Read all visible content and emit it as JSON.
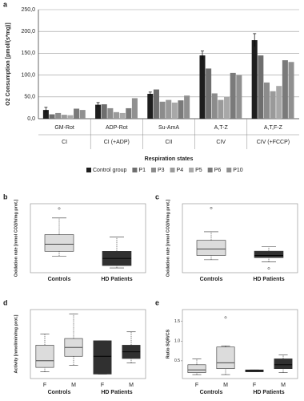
{
  "chart_data": [
    {
      "type": "bar",
      "panel_label": "a",
      "ylabel": "O2 Consumption [pmol/(s*mg)]",
      "xlabel": "Respiration states",
      "categories": [
        "GM-Rot",
        "ADP-Rot",
        "Su-AmA",
        "A,T-Z",
        "A,T,F-Z"
      ],
      "sub_categories": [
        "CI",
        "CI (+ADP)",
        "CII",
        "CIV",
        "CIV (+FCCP)"
      ],
      "ylim": [
        0,
        250
      ],
      "yticks": [
        {
          "value": 0,
          "label": "0,0"
        },
        {
          "value": 50,
          "label": "50,0"
        },
        {
          "value": 100,
          "label": "100,0"
        },
        {
          "value": 150,
          "label": "150,0"
        },
        {
          "value": 200,
          "label": "200,0"
        },
        {
          "value": 250,
          "label": "250,0"
        }
      ],
      "grid": true,
      "series": [
        {
          "name": "Control group",
          "color": "#1e1e1e",
          "values": [
            20,
            32,
            57,
            145,
            180
          ],
          "errors": [
            6,
            5,
            4,
            10,
            15
          ]
        },
        {
          "name": "P1",
          "color": "#6e6e6e",
          "values": [
            10,
            33,
            67,
            115,
            145
          ]
        },
        {
          "name": "P3",
          "color": "#8c8c8c",
          "values": [
            13,
            24,
            39,
            58,
            83
          ]
        },
        {
          "name": "P4",
          "color": "#9a9a9a",
          "values": [
            9,
            15,
            43,
            43,
            63
          ]
        },
        {
          "name": "P5",
          "color": "#a8a8a8",
          "values": [
            8,
            13,
            37,
            50,
            75
          ]
        },
        {
          "name": "P6",
          "color": "#7a7a7a",
          "values": [
            23,
            24,
            42,
            105,
            134
          ]
        },
        {
          "name": "P10",
          "color": "#909090",
          "values": [
            20,
            47,
            53,
            100,
            130
          ]
        }
      ]
    },
    {
      "type": "box",
      "panel_label": "b",
      "ylabel": "Oxidation rate [nmol CO2/h/mg prot.]",
      "categories": [
        "Controls",
        "HD Patients"
      ],
      "colors": [
        "#dcdcdc",
        "#303030"
      ],
      "ylim": [
        2,
        16.5
      ],
      "boxes": [
        {
          "whisker_low": 5.5,
          "q1": 6.5,
          "median": 8,
          "q3": 10,
          "whisker_high": 13.5,
          "outliers": [
            15.5
          ]
        },
        {
          "whisker_low": 3,
          "q1": 3.5,
          "median": 5,
          "q3": 6.5,
          "whisker_high": 9.5,
          "outliers": []
        }
      ]
    },
    {
      "type": "box",
      "panel_label": "c",
      "ylabel": "Oxidation rate [nmol CO2/h/mg prot.]",
      "categories": [
        "Controls",
        "HD Patients"
      ],
      "colors": [
        "#dcdcdc",
        "#303030"
      ],
      "ylim": [
        2,
        18
      ],
      "boxes": [
        {
          "whisker_low": 5,
          "q1": 6,
          "median": 7.5,
          "q3": 9.5,
          "whisker_high": 11.5,
          "outliers": [
            17
          ]
        },
        {
          "whisker_low": 4.5,
          "q1": 5.5,
          "median": 6,
          "q3": 7,
          "whisker_high": 8,
          "outliers": [
            3
          ]
        }
      ]
    },
    {
      "type": "box",
      "panel_label": "d",
      "ylabel": "Activity [nmol/min/mg prot.]",
      "categories": [
        "F",
        "M",
        "F",
        "M"
      ],
      "group_labels": [
        "Controls",
        "HD Patients"
      ],
      "colors": [
        "#dcdcdc",
        "#dcdcdc",
        "#303030",
        "#303030"
      ],
      "ylim": [
        2,
        33
      ],
      "boxes": [
        {
          "whisker_low": 5,
          "q1": 7,
          "median": 10,
          "q3": 17,
          "whisker_high": 22,
          "outliers": []
        },
        {
          "whisker_low": 8,
          "q1": 12,
          "median": 16,
          "q3": 20,
          "whisker_high": 31,
          "outliers": []
        },
        {
          "whisker_low": 4,
          "q1": 4,
          "median": 12,
          "q3": 19,
          "whisker_high": 19,
          "outliers": []
        },
        {
          "whisker_low": 9,
          "q1": 11,
          "median": 14,
          "q3": 17,
          "whisker_high": 23,
          "outliers": []
        }
      ]
    },
    {
      "type": "box",
      "panel_label": "e",
      "ylabel": "Ratio SQR/CS",
      "categories": [
        "F",
        "M",
        "F",
        "M"
      ],
      "group_labels": [
        "Controls",
        "HD Patients"
      ],
      "colors": [
        "#dcdcdc",
        "#dcdcdc",
        "#303030",
        "#303030"
      ],
      "ylim": [
        0.05,
        1.8
      ],
      "yticks": [
        0.5,
        {
          "value": 1,
          "label": "1.0"
        },
        1.5
      ],
      "boxes": [
        {
          "whisker_low": 0.15,
          "q1": 0.2,
          "median": 0.27,
          "q3": 0.4,
          "whisker_high": 0.55,
          "outliers": []
        },
        {
          "whisker_low": 0.15,
          "q1": 0.3,
          "median": 0.45,
          "q3": 0.85,
          "whisker_high": 0.88,
          "outliers": [
            1.6
          ]
        },
        {
          "whisker_low": 0.22,
          "q1": 0.22,
          "median": 0.25,
          "q3": 0.27,
          "whisker_high": 0.27,
          "outliers": []
        },
        {
          "whisker_low": 0.2,
          "q1": 0.3,
          "median": 0.4,
          "q3": 0.55,
          "whisker_high": 0.65,
          "outliers": []
        }
      ]
    }
  ]
}
